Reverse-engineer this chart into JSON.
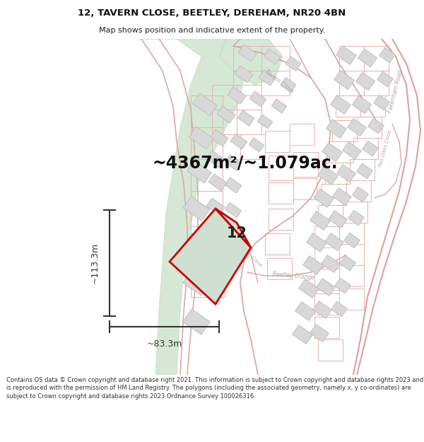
{
  "title_line1": "12, TAVERN CLOSE, BEETLEY, DEREHAM, NR20 4BN",
  "title_line2": "Map shows position and indicative extent of the property.",
  "area_text": "~4367m²/~1.079ac.",
  "property_number": "12",
  "dim_height": "~113.3m",
  "dim_width": "~83.3m",
  "footer_text": "Contains OS data © Crown copyright and database right 2021. This information is subject to Crown copyright and database rights 2023 and is reproduced with the permission of HM Land Registry. The polygons (including the associated geometry, namely x, y co-ordinates) are subject to Crown copyright and database rights 2023 Ordnance Survey 100026316.",
  "map_bg": "#ffffff",
  "property_fill": "#cfe0d0",
  "property_edge": "#cc0000",
  "road_color": "#e8a0a0",
  "road_outline": "#e0b0b0",
  "building_fill": "#e8e8e8",
  "building_edge": "#e0a0a0",
  "green_fill": "#d5e8d5",
  "green_edge": "#c0d8c0",
  "dim_color": "#333333"
}
